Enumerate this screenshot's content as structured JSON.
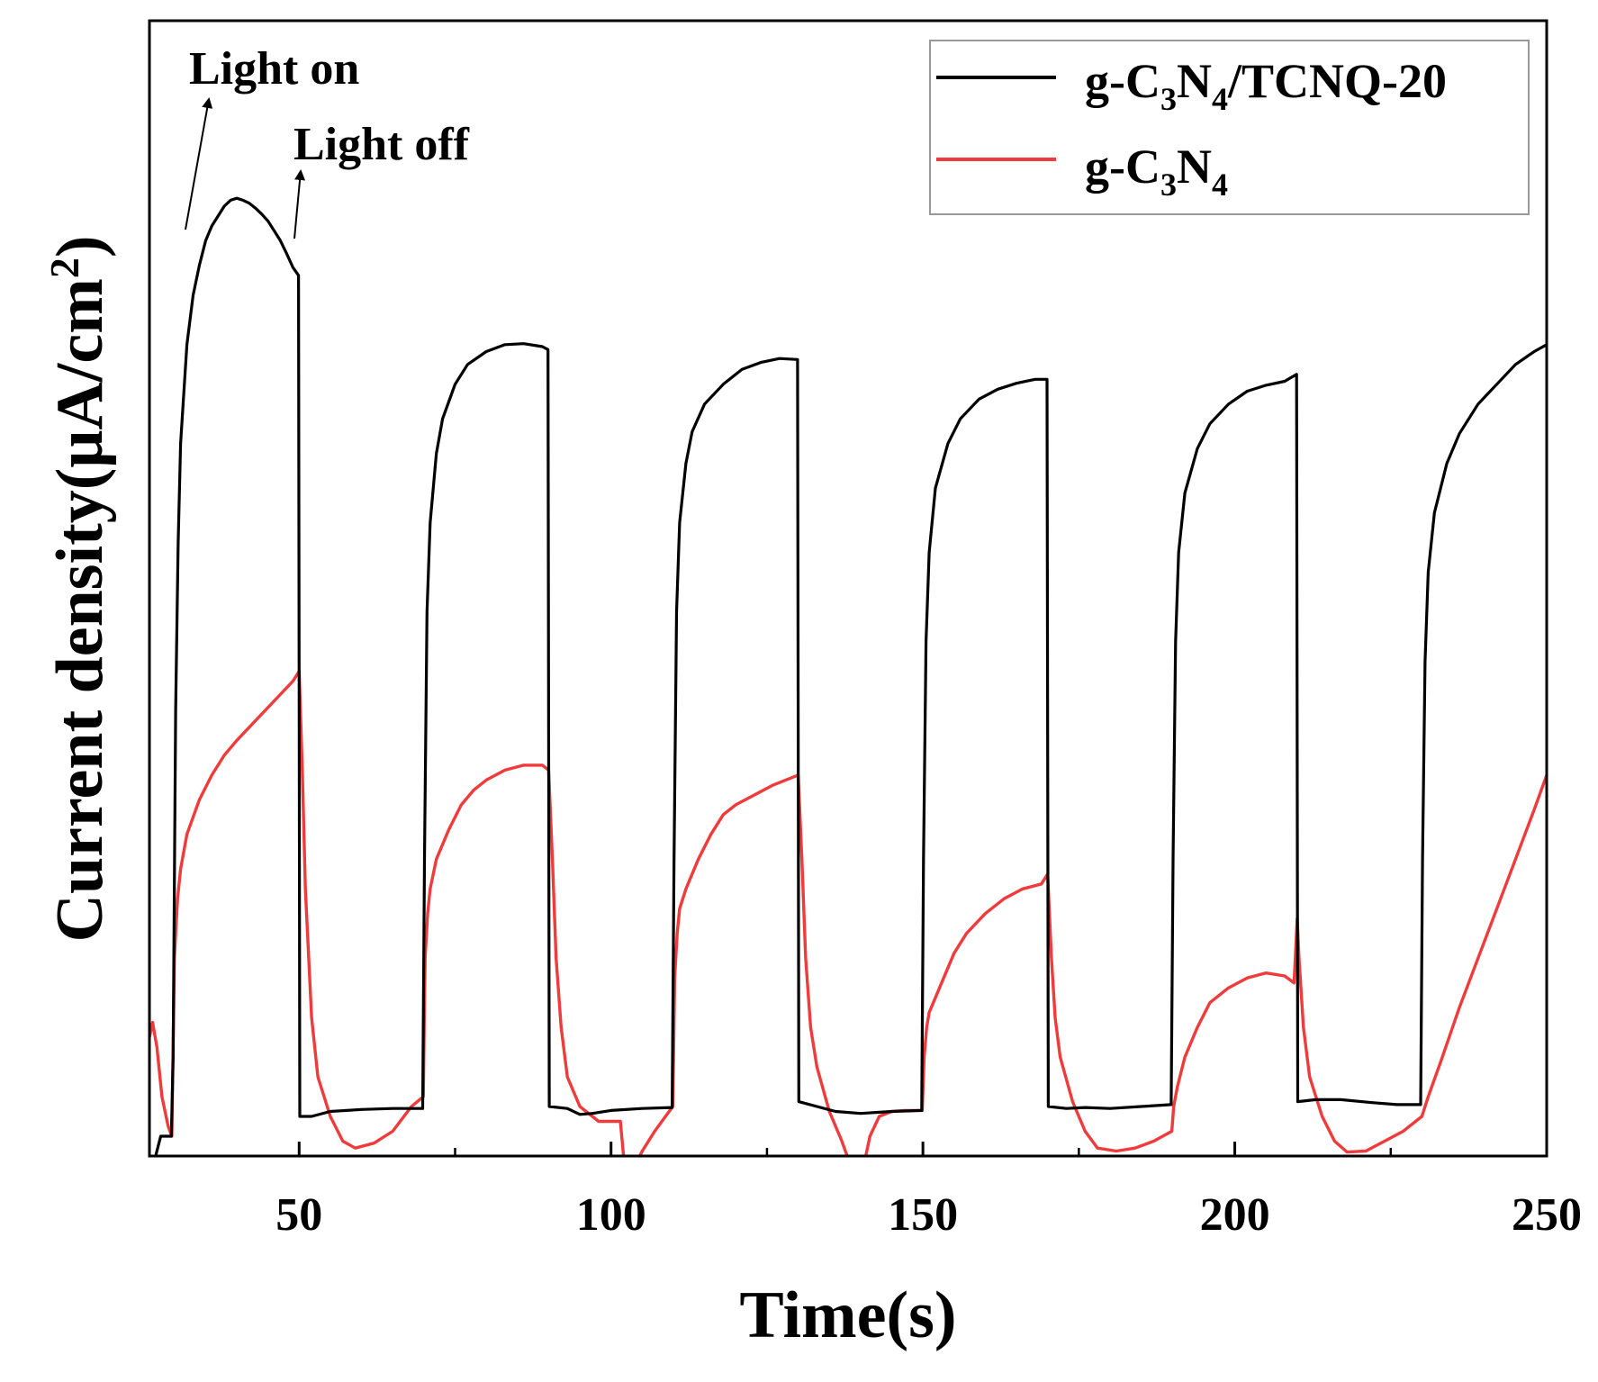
{
  "chart_data": {
    "type": "line",
    "title": "",
    "xlabel": "Time(s)",
    "ylabel": "Current density(μA/cm²)",
    "ylabel_parts": {
      "main": "Current density(μA/cm",
      "sup": "2",
      "close": ")"
    },
    "xlim": [
      26,
      250
    ],
    "ylim": [
      0,
      1
    ],
    "y_tick_labels": "none",
    "x_ticks": [
      50,
      100,
      150,
      200,
      250
    ],
    "x_tick_labels": [
      "50",
      "100",
      "150",
      "200",
      "250"
    ],
    "x_minor_ticks": [
      75,
      125,
      175,
      225
    ],
    "grid": false,
    "legend_position": "top-right",
    "legend_frame_color": "#999999",
    "annotations": [
      {
        "text": "Light on",
        "x": 30
      },
      {
        "text": "Light off",
        "x": 50
      }
    ],
    "series": [
      {
        "name": "g-C3N4/TCNQ-20",
        "name_parts": [
          "g-C",
          "3",
          "N",
          "4",
          "/TCNQ-20"
        ],
        "color": "#000000",
        "points": [
          [
            26,
            -0.03
          ],
          [
            27,
            0.0
          ],
          [
            27.8,
            0.02
          ],
          [
            28.5,
            0.02
          ],
          [
            29.5,
            0.02
          ],
          [
            29.8,
            0.1
          ],
          [
            30.2,
            0.45
          ],
          [
            30.6,
            0.62
          ],
          [
            31,
            0.72
          ],
          [
            32,
            0.82
          ],
          [
            33,
            0.87
          ],
          [
            34,
            0.9
          ],
          [
            35,
            0.925
          ],
          [
            36,
            0.94
          ],
          [
            37,
            0.95
          ],
          [
            38,
            0.96
          ],
          [
            39,
            0.966
          ],
          [
            40,
            0.968
          ],
          [
            41,
            0.966
          ],
          [
            42,
            0.963
          ],
          [
            43,
            0.958
          ],
          [
            44,
            0.952
          ],
          [
            45,
            0.945
          ],
          [
            46,
            0.935
          ],
          [
            47,
            0.925
          ],
          [
            48,
            0.912
          ],
          [
            49,
            0.898
          ],
          [
            49.9,
            0.89
          ],
          [
            50.1,
            0.04
          ],
          [
            52,
            0.04
          ],
          [
            55,
            0.045
          ],
          [
            60,
            0.047
          ],
          [
            65,
            0.048
          ],
          [
            69.8,
            0.048
          ],
          [
            70.1,
            0.3
          ],
          [
            70.5,
            0.55
          ],
          [
            71,
            0.64
          ],
          [
            72,
            0.71
          ],
          [
            73,
            0.745
          ],
          [
            75,
            0.78
          ],
          [
            77,
            0.8
          ],
          [
            80,
            0.813
          ],
          [
            83,
            0.82
          ],
          [
            86,
            0.821
          ],
          [
            89,
            0.818
          ],
          [
            89.9,
            0.815
          ],
          [
            90.1,
            0.05
          ],
          [
            93,
            0.048
          ],
          [
            95,
            0.042
          ],
          [
            97,
            0.043
          ],
          [
            100,
            0.046
          ],
          [
            105,
            0.048
          ],
          [
            109.8,
            0.049
          ],
          [
            110.1,
            0.3
          ],
          [
            110.5,
            0.55
          ],
          [
            111,
            0.64
          ],
          [
            112,
            0.7
          ],
          [
            113,
            0.732
          ],
          [
            115,
            0.76
          ],
          [
            118,
            0.78
          ],
          [
            121,
            0.795
          ],
          [
            124,
            0.802
          ],
          [
            127,
            0.806
          ],
          [
            129.9,
            0.805
          ],
          [
            130.1,
            0.055
          ],
          [
            133,
            0.05
          ],
          [
            136,
            0.045
          ],
          [
            140,
            0.043
          ],
          [
            145,
            0.045
          ],
          [
            149.8,
            0.046
          ],
          [
            150.1,
            0.3
          ],
          [
            150.5,
            0.52
          ],
          [
            151,
            0.61
          ],
          [
            152,
            0.675
          ],
          [
            154,
            0.72
          ],
          [
            156,
            0.745
          ],
          [
            159,
            0.765
          ],
          [
            162,
            0.775
          ],
          [
            165,
            0.781
          ],
          [
            168,
            0.785
          ],
          [
            169.9,
            0.785
          ],
          [
            170.1,
            0.05
          ],
          [
            173,
            0.048
          ],
          [
            176,
            0.049
          ],
          [
            180,
            0.048
          ],
          [
            185,
            0.05
          ],
          [
            189.8,
            0.052
          ],
          [
            190.1,
            0.3
          ],
          [
            190.5,
            0.52
          ],
          [
            191,
            0.61
          ],
          [
            192,
            0.67
          ],
          [
            194,
            0.715
          ],
          [
            196,
            0.74
          ],
          [
            199,
            0.76
          ],
          [
            202,
            0.773
          ],
          [
            205,
            0.779
          ],
          [
            208,
            0.783
          ],
          [
            209.9,
            0.79
          ],
          [
            210.1,
            0.055
          ],
          [
            213,
            0.057
          ],
          [
            217,
            0.057
          ],
          [
            222,
            0.054
          ],
          [
            226,
            0.052
          ],
          [
            229.8,
            0.052
          ],
          [
            230.1,
            0.3
          ],
          [
            230.5,
            0.5
          ],
          [
            231,
            0.59
          ],
          [
            232,
            0.65
          ],
          [
            234,
            0.7
          ],
          [
            236,
            0.73
          ],
          [
            239,
            0.76
          ],
          [
            242,
            0.78
          ],
          [
            245,
            0.8
          ],
          [
            248,
            0.813
          ],
          [
            250,
            0.82
          ]
        ]
      },
      {
        "name": "g-C3N4",
        "name_parts": [
          "g-C",
          "3",
          "N",
          "4"
        ],
        "color": "#ef3b3b",
        "points": [
          [
            26,
            0.12
          ],
          [
            26.5,
            0.135
          ],
          [
            27.2,
            0.11
          ],
          [
            28,
            0.06
          ],
          [
            29,
            0.03
          ],
          [
            29.6,
            0.02
          ],
          [
            30,
            0.2
          ],
          [
            30.5,
            0.26
          ],
          [
            31,
            0.29
          ],
          [
            32,
            0.325
          ],
          [
            34,
            0.36
          ],
          [
            36,
            0.385
          ],
          [
            38,
            0.405
          ],
          [
            40,
            0.42
          ],
          [
            43,
            0.44
          ],
          [
            46,
            0.46
          ],
          [
            49,
            0.48
          ],
          [
            50,
            0.49
          ],
          [
            50.5,
            0.39
          ],
          [
            51,
            0.27
          ],
          [
            52,
            0.14
          ],
          [
            53,
            0.08
          ],
          [
            55,
            0.04
          ],
          [
            57,
            0.015
          ],
          [
            59,
            0.008
          ],
          [
            62,
            0.013
          ],
          [
            65,
            0.025
          ],
          [
            68,
            0.05
          ],
          [
            69.9,
            0.06
          ],
          [
            70.2,
            0.2
          ],
          [
            70.6,
            0.245
          ],
          [
            71,
            0.27
          ],
          [
            72,
            0.3
          ],
          [
            74,
            0.33
          ],
          [
            76,
            0.355
          ],
          [
            78,
            0.37
          ],
          [
            80,
            0.38
          ],
          [
            83,
            0.39
          ],
          [
            86,
            0.395
          ],
          [
            89,
            0.395
          ],
          [
            90,
            0.39
          ],
          [
            90.6,
            0.3
          ],
          [
            91.2,
            0.2
          ],
          [
            92,
            0.13
          ],
          [
            93,
            0.08
          ],
          [
            95,
            0.05
          ],
          [
            98,
            0.035
          ],
          [
            100,
            0.035
          ],
          [
            101.5,
            0.035
          ],
          [
            102,
            0.0
          ],
          [
            103,
            -0.02
          ],
          [
            105,
            0.005
          ],
          [
            107,
            0.025
          ],
          [
            109.9,
            0.05
          ],
          [
            110.2,
            0.18
          ],
          [
            110.6,
            0.225
          ],
          [
            111,
            0.25
          ],
          [
            112,
            0.27
          ],
          [
            114,
            0.3
          ],
          [
            116,
            0.325
          ],
          [
            118,
            0.345
          ],
          [
            120,
            0.355
          ],
          [
            123,
            0.365
          ],
          [
            126,
            0.375
          ],
          [
            128,
            0.38
          ],
          [
            130,
            0.385
          ],
          [
            130.6,
            0.3
          ],
          [
            131.2,
            0.2
          ],
          [
            132,
            0.13
          ],
          [
            133,
            0.09
          ],
          [
            135,
            0.045
          ],
          [
            137,
            0.015
          ],
          [
            139,
            -0.02
          ],
          [
            140.5,
            -0.01
          ],
          [
            141.5,
            0.02
          ],
          [
            143,
            0.04
          ],
          [
            145,
            0.045
          ],
          [
            147,
            0.046
          ],
          [
            149.9,
            0.046
          ],
          [
            150.2,
            0.1
          ],
          [
            150.6,
            0.13
          ],
          [
            151,
            0.145
          ],
          [
            153,
            0.175
          ],
          [
            155,
            0.205
          ],
          [
            157,
            0.225
          ],
          [
            160,
            0.245
          ],
          [
            163,
            0.26
          ],
          [
            166,
            0.27
          ],
          [
            169,
            0.275
          ],
          [
            170,
            0.285
          ],
          [
            170.6,
            0.2
          ],
          [
            171.2,
            0.14
          ],
          [
            172,
            0.1
          ],
          [
            174,
            0.055
          ],
          [
            176,
            0.025
          ],
          [
            178,
            0.008
          ],
          [
            181,
            0.005
          ],
          [
            184,
            0.008
          ],
          [
            187,
            0.015
          ],
          [
            189.9,
            0.025
          ],
          [
            190.2,
            0.05
          ],
          [
            190.8,
            0.07
          ],
          [
            192,
            0.1
          ],
          [
            194,
            0.13
          ],
          [
            196,
            0.155
          ],
          [
            199,
            0.17
          ],
          [
            202,
            0.18
          ],
          [
            205,
            0.185
          ],
          [
            208,
            0.182
          ],
          [
            209.5,
            0.175
          ],
          [
            210,
            0.24
          ],
          [
            210.3,
            0.2
          ],
          [
            211,
            0.13
          ],
          [
            212,
            0.08
          ],
          [
            214,
            0.04
          ],
          [
            216,
            0.015
          ],
          [
            218,
            0.004
          ],
          [
            221,
            0.005
          ],
          [
            224,
            0.015
          ],
          [
            227,
            0.025
          ],
          [
            230,
            0.04
          ],
          [
            231,
            0.06
          ],
          [
            233,
            0.095
          ],
          [
            236,
            0.15
          ],
          [
            239,
            0.2
          ],
          [
            242,
            0.25
          ],
          [
            245,
            0.3
          ],
          [
            248,
            0.35
          ],
          [
            250,
            0.385
          ]
        ]
      }
    ]
  }
}
